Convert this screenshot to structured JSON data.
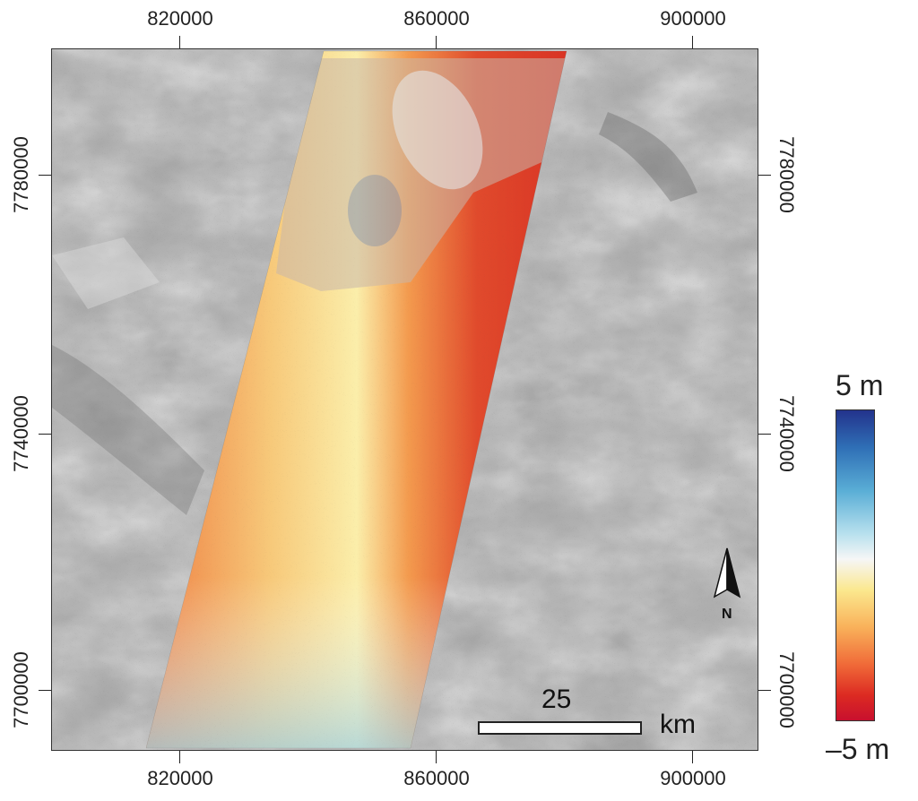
{
  "map": {
    "x_ticks": [
      "820000",
      "860000",
      "900000"
    ],
    "y_ticks": [
      "7780000",
      "7740000",
      "7700000"
    ],
    "scale_bar": {
      "value": "25",
      "unit": "km"
    },
    "north_arrow": "N",
    "legend": {
      "max_label": "5 m",
      "min_label": "–5 m"
    },
    "colors": {
      "background_shade": "#9a9a9a",
      "colorbar": [
        "#23338c",
        "#2f6fb6",
        "#5aaed6",
        "#b9e1ee",
        "#f6f6f6",
        "#fbe88e",
        "#f9b15a",
        "#f06a38",
        "#dc2a22",
        "#c8102e"
      ]
    }
  }
}
